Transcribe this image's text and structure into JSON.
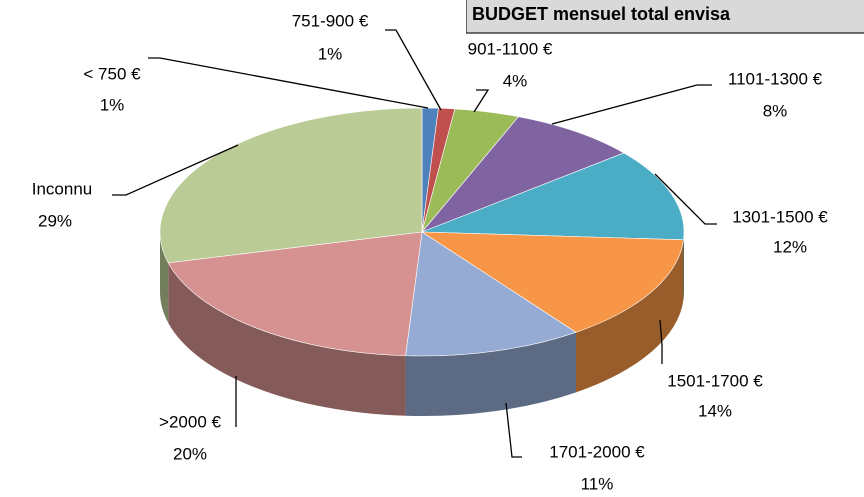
{
  "chart_data": {
    "type": "pie3d",
    "title": "BUDGET mensuel total envisa",
    "categories": [
      "< 750 €",
      "751-900 €",
      "901-1100 €",
      "1101-1300 €",
      "1301-1500 €",
      "1501-1700 €",
      "1701-2000 €",
      ">2000 €",
      "Inconnu"
    ],
    "values": [
      1,
      1,
      4,
      8,
      12,
      14,
      11,
      20,
      29
    ],
    "value_labels": [
      "1%",
      "1%",
      "4%",
      "8%",
      "12%",
      "14%",
      "11%",
      "20%",
      "29%"
    ],
    "colors": [
      "#4f81bd",
      "#c0504d",
      "#9bbb59",
      "#8064a2",
      "#4bacc6",
      "#f79646",
      "#95abd3",
      "#d59290",
      "#bacb95"
    ]
  }
}
